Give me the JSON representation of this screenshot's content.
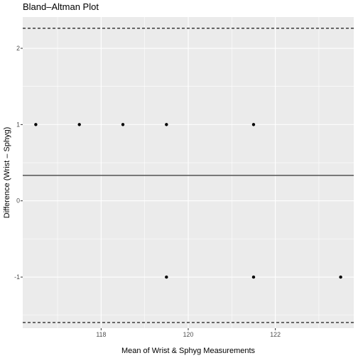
{
  "chart_data": {
    "type": "scatter",
    "title": "Bland–Altman Plot",
    "xlabel": "Mean of Wrist & Sphyg Measurements",
    "ylabel": "Difference (Wrist – Sphyg)",
    "xlim": [
      116.2,
      123.8
    ],
    "ylim": [
      -1.67,
      2.41
    ],
    "x_ticks": [
      118,
      120,
      122
    ],
    "y_ticks": [
      -1,
      0,
      1,
      2
    ],
    "grid": true,
    "legend": "none",
    "points": [
      {
        "x": 116.5,
        "y": 1
      },
      {
        "x": 117.5,
        "y": 1
      },
      {
        "x": 118.5,
        "y": 1
      },
      {
        "x": 119.5,
        "y": 1
      },
      {
        "x": 121.5,
        "y": 1
      },
      {
        "x": 119.5,
        "y": -1
      },
      {
        "x": 121.5,
        "y": -1
      },
      {
        "x": 123.5,
        "y": -1
      }
    ],
    "mean_difference": 0.333,
    "upper_limit": 2.263,
    "lower_limit": -1.596,
    "colors": {
      "panel": "#ebebeb",
      "grid_major": "#ffffff",
      "points": "#000000",
      "lines": "#000000"
    }
  }
}
